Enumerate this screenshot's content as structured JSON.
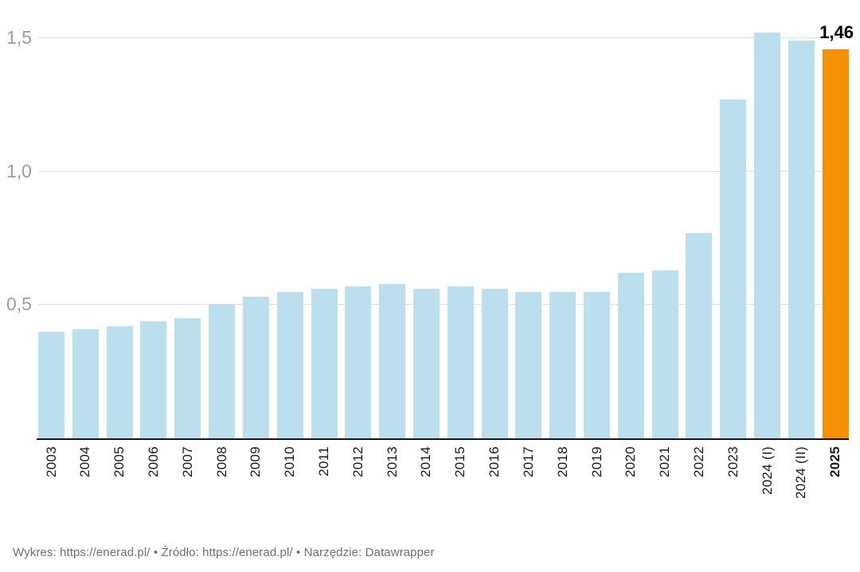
{
  "chart_data": {
    "type": "bar",
    "title": "",
    "xlabel": "",
    "ylabel": "",
    "categories": [
      "2003",
      "2004",
      "2005",
      "2006",
      "2007",
      "2008",
      "2009",
      "2010",
      "2011",
      "2012",
      "2013",
      "2014",
      "2015",
      "2016",
      "2017",
      "2018",
      "2019",
      "2020",
      "2021",
      "2022",
      "2023",
      "2024 (I)",
      "2024 (II)",
      "2025"
    ],
    "values": [
      0.4,
      0.41,
      0.42,
      0.44,
      0.45,
      0.5,
      0.53,
      0.55,
      0.56,
      0.57,
      0.58,
      0.56,
      0.57,
      0.56,
      0.55,
      0.55,
      0.55,
      0.62,
      0.63,
      0.77,
      1.27,
      1.52,
      1.49,
      1.46
    ],
    "highlight_category": "2025",
    "value_label": {
      "text": "1,46",
      "value": 1.46
    },
    "colors": {
      "bar": "#BBDFEC",
      "highlight": "#F59105",
      "gridline": "#DCDCDC",
      "axis": "#161616",
      "y_tick_text": "#9B9B9B",
      "x_tick_text": "#1A1A1A"
    },
    "y_axis": {
      "ticks": [
        {
          "label": "0,5",
          "value": 0.5
        },
        {
          "label": "1,0",
          "value": 1.0
        },
        {
          "label": "1,5",
          "value": 1.5
        }
      ]
    },
    "ylim": [
      0,
      1.65
    ],
    "grid": true,
    "legend": "none"
  },
  "footer": {
    "chart_label": "Wykres:",
    "chart_link": "https://enerad.pl/",
    "separator": "•",
    "source_label": "Źródło:",
    "source_link": "https://enerad.pl/",
    "tool_label": "Narzędzie:",
    "tool_name": "Datawrapper"
  }
}
